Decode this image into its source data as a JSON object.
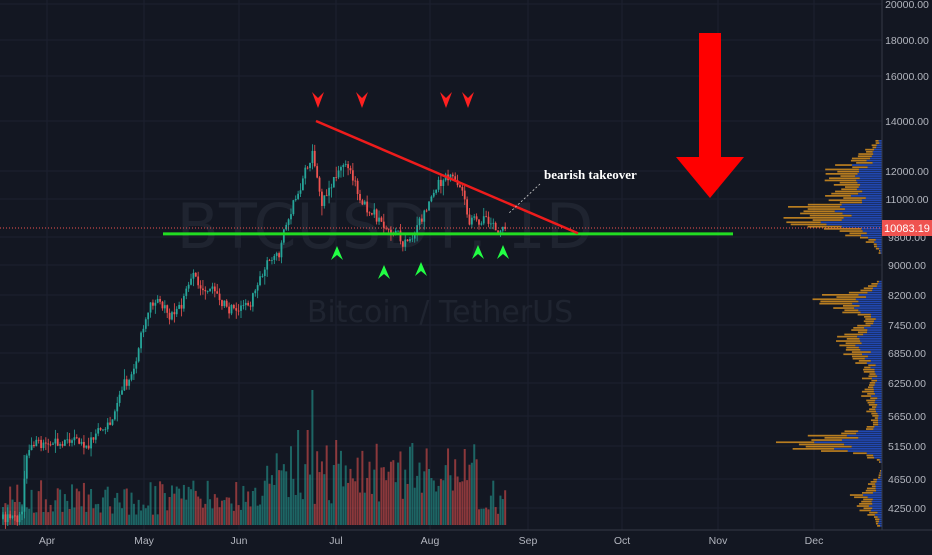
{
  "chart_data": {
    "type": "candlestick",
    "symbol_watermark": "BTCUSDT, 1D",
    "name_watermark": "Bitcoin / TetherUS",
    "current_price": "10083.19",
    "y_ticks": [
      "20000.00",
      "18000.00",
      "16000.00",
      "14000.00",
      "12000.00",
      "11000.00",
      "9800.00",
      "9000.00",
      "8200.00",
      "7450.00",
      "6850.00",
      "6250.00",
      "5650.00",
      "5150.00",
      "4650.00",
      "4250.00"
    ],
    "x_ticks": [
      "Apr",
      "May",
      "Jun",
      "Jul",
      "Aug",
      "Sep",
      "Oct",
      "Nov",
      "Dec"
    ],
    "annotation": "bearish takeover",
    "support_level": 9900,
    "resistance_line": {
      "from_price": 14000,
      "to_price": 9950
    },
    "colors": {
      "background": "#131722",
      "up": "#26a69a",
      "down": "#ef5350",
      "support": "#22dd22",
      "resistance": "#ee1c1c",
      "arrow": "#ff0000",
      "marker_up": "#22ff44",
      "marker_down": "#ff2020",
      "volume_profile_up": "#2962ff",
      "volume_profile_down": "#f0a020"
    }
  }
}
